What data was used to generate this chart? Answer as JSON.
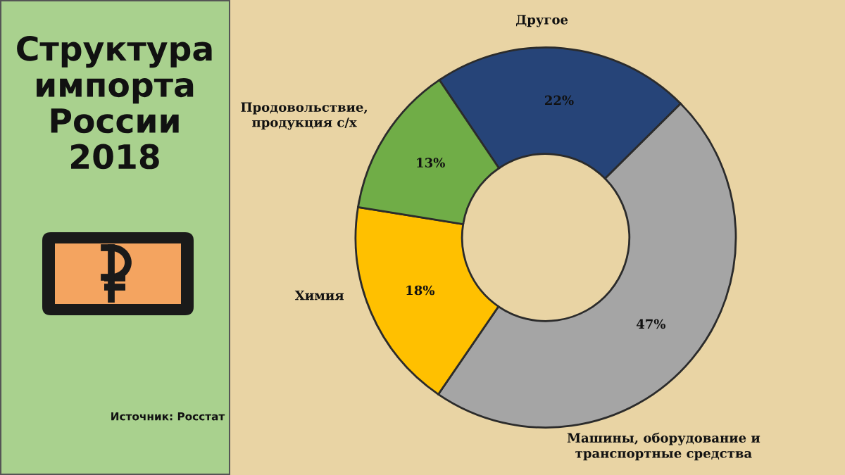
{
  "chart_data": {
    "type": "donut",
    "title": "Структура\nимпорта\nРоссии\n2018",
    "categories": [
      "Другое",
      "Машины, оборудование и\nтранспортные средства",
      "Химия",
      "Продовольствие,\nпродукция с/х"
    ],
    "values": [
      22,
      47,
      18,
      13
    ],
    "value_labels": [
      "22%",
      "47%",
      "18%",
      "13%"
    ],
    "colors": [
      "#264478",
      "#a5a5a5",
      "#ffc000",
      "#70ad47"
    ],
    "annotations": [
      "Источник: Росстат"
    ]
  }
}
